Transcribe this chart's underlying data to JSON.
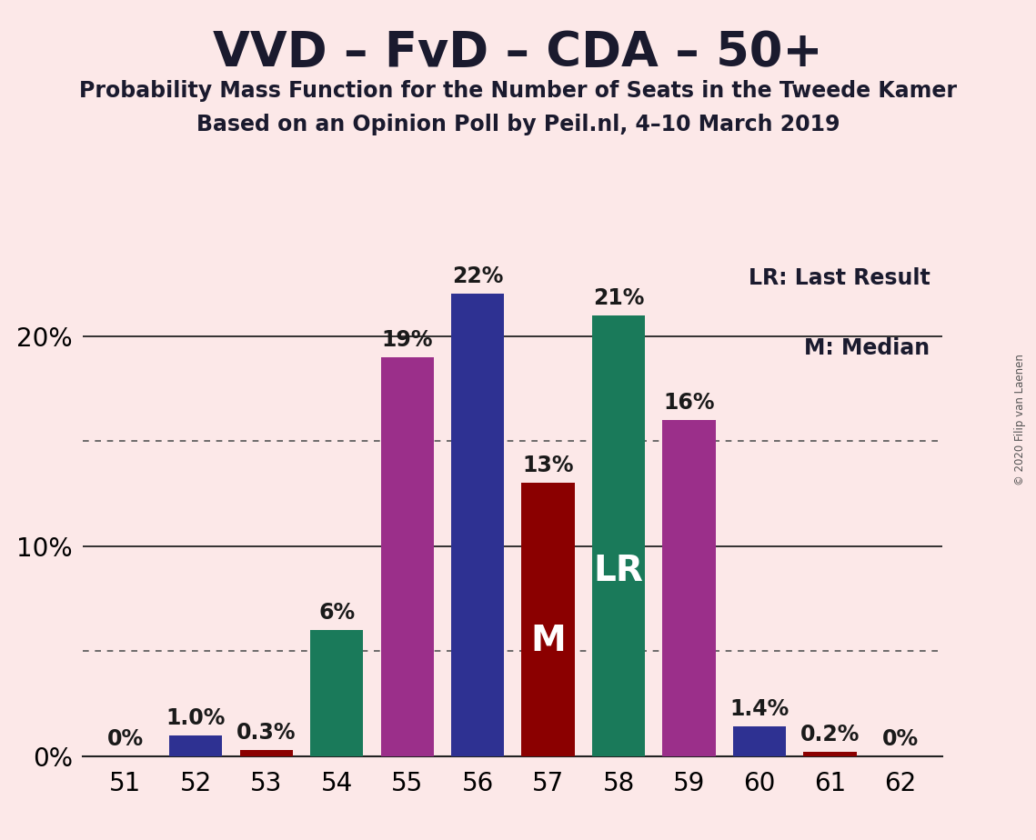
{
  "title": "VVD – FvD – CDA – 50+",
  "subtitle1": "Probability Mass Function for the Number of Seats in the Tweede Kamer",
  "subtitle2": "Based on an Opinion Poll by Peil.nl, 4–10 March 2019",
  "copyright": "© 2020 Filip van Laenen",
  "legend_lr": "LR: Last Result",
  "legend_m": "M: Median",
  "seats": [
    51,
    52,
    53,
    54,
    55,
    56,
    57,
    58,
    59,
    60,
    61,
    62
  ],
  "probabilities": [
    0.0,
    1.0,
    0.3,
    6.0,
    19.0,
    22.0,
    13.0,
    21.0,
    16.0,
    1.4,
    0.2,
    0.0
  ],
  "bar_colors": [
    "#2e3192",
    "#2e3192",
    "#8b0000",
    "#1a7a5a",
    "#9b2f8a",
    "#2e3192",
    "#8b0000",
    "#1a7a5a",
    "#9b2f8a",
    "#2e3192",
    "#8b0000",
    "#2e3192"
  ],
  "median_seat": 57,
  "lr_seat": 58,
  "background_color": "#fce8e8",
  "ylim": [
    0,
    24
  ],
  "yticks": [
    0,
    10,
    20
  ],
  "dotted_lines": [
    5,
    15
  ],
  "title_fontsize": 38,
  "subtitle_fontsize": 17,
  "label_fontsize": 17,
  "tick_fontsize": 20,
  "bar_width": 0.75
}
